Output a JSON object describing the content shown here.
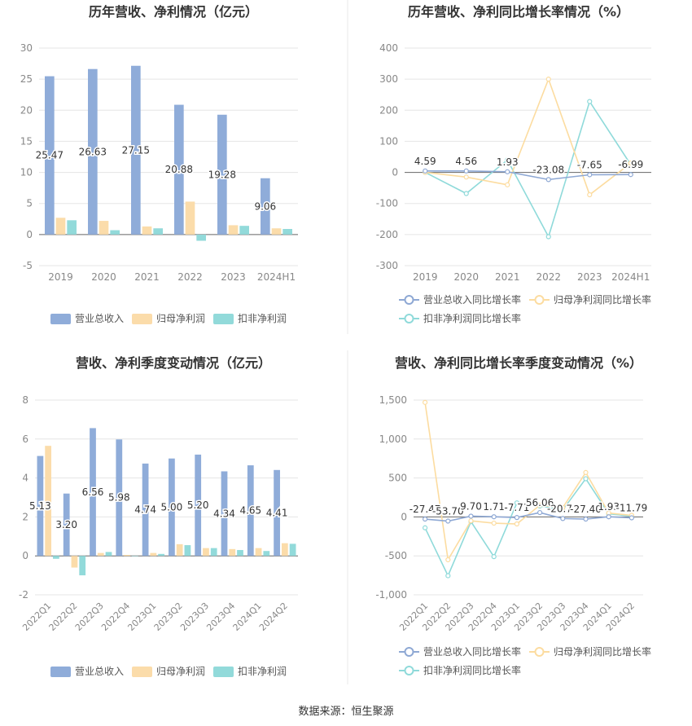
{
  "colors": {
    "revenue": "#8facd9",
    "net_profit": "#fbdcaa",
    "deducted_net_profit": "#92dada",
    "revenue_line": "#8ea8d4",
    "net_profit_line": "#fcdca0",
    "deducted_line": "#8fdada",
    "grid": "#e5e5e5",
    "axis_text": "#888888",
    "title_text": "#333333",
    "divider": "#e8e8e8"
  },
  "footer": {
    "source": "数据来源：恒生聚源"
  },
  "chart_data": [
    {
      "id": "annual-amounts",
      "type": "bar",
      "title": "历年营收、净利情况（亿元）",
      "categories": [
        "2019",
        "2020",
        "2021",
        "2022",
        "2023",
        "2024H1"
      ],
      "ylim": [
        -5,
        30
      ],
      "yticks": [
        -5,
        0,
        5,
        10,
        15,
        20,
        25,
        30
      ],
      "grid": true,
      "legend_position": "bottom",
      "series": [
        {
          "name": "营业总收入",
          "values": [
            25.47,
            26.63,
            27.15,
            20.88,
            19.28,
            9.06
          ],
          "labels": [
            "25.47",
            "26.63",
            "27.15",
            "20.88",
            "19.28",
            "9.06"
          ]
        },
        {
          "name": "归母净利润",
          "values": [
            2.7,
            2.2,
            1.3,
            5.3,
            1.5,
            1.0
          ]
        },
        {
          "name": "扣非净利润",
          "values": [
            2.3,
            0.7,
            1.0,
            -1.0,
            1.4,
            0.9
          ]
        }
      ]
    },
    {
      "id": "annual-growth",
      "type": "line",
      "title": "历年营收、净利同比增长率情况（%）",
      "categories": [
        "2019",
        "2020",
        "2021",
        "2022",
        "2023",
        "2024H1"
      ],
      "ylim": [
        -300,
        400
      ],
      "yticks": [
        -300,
        -200,
        -100,
        0,
        100,
        200,
        300,
        400
      ],
      "grid": true,
      "legend_position": "bottom",
      "series": [
        {
          "name": "营业总收入同比增长率",
          "values": [
            4.59,
            4.56,
            1.93,
            -23.08,
            -7.65,
            -6.99
          ],
          "labels": [
            "4.59",
            "4.56",
            "1.93",
            "-23.08",
            "-7.65",
            "-6.99"
          ]
        },
        {
          "name": "归母净利润同比增长率",
          "values": [
            0,
            -15,
            -40,
            300,
            -72,
            30
          ]
        },
        {
          "name": "扣非净利润同比增长率",
          "values": [
            0,
            -68,
            40,
            -207,
            228,
            25
          ]
        }
      ]
    },
    {
      "id": "quarterly-amounts",
      "type": "bar",
      "title": "营收、净利季度变动情况（亿元）",
      "categories": [
        "2022Q1",
        "2022Q2",
        "2022Q3",
        "2022Q4",
        "2023Q1",
        "2023Q2",
        "2023Q3",
        "2023Q4",
        "2024Q1",
        "2024Q2"
      ],
      "ylim": [
        -2,
        8
      ],
      "yticks": [
        -2,
        0,
        2,
        4,
        6,
        8
      ],
      "grid": true,
      "legend_position": "bottom",
      "series": [
        {
          "name": "营业总收入",
          "values": [
            5.13,
            3.2,
            6.56,
            5.98,
            4.74,
            5.0,
            5.2,
            4.34,
            4.65,
            4.41
          ],
          "labels": [
            "5.13",
            "3.20",
            "6.56",
            "5.98",
            "4.74",
            "5.00",
            "5.20",
            "4.34",
            "4.65",
            "4.41"
          ]
        },
        {
          "name": "归母净利润",
          "values": [
            5.65,
            -0.6,
            0.15,
            0.05,
            0.15,
            0.6,
            0.4,
            0.35,
            0.4,
            0.65
          ]
        },
        {
          "name": "扣非净利润",
          "values": [
            -0.15,
            -1.0,
            0.2,
            0.0,
            0.1,
            0.55,
            0.4,
            0.3,
            0.25,
            0.62
          ]
        }
      ]
    },
    {
      "id": "quarterly-growth",
      "type": "line",
      "title": "营收、净利同比增长率季度变动情况（%）",
      "categories": [
        "2022Q1",
        "2022Q2",
        "2022Q3",
        "2022Q4",
        "2023Q1",
        "2023Q2",
        "2023Q3",
        "2023Q4",
        "2024Q1",
        "2024Q2"
      ],
      "ylim": [
        -1000,
        1500
      ],
      "yticks": [
        -1000,
        -500,
        0,
        500,
        1000,
        1500
      ],
      "ytick_labels": [
        "-1,000",
        "-500",
        "0",
        "500",
        "1,000",
        "1,500"
      ],
      "grid": true,
      "legend_position": "bottom",
      "series": [
        {
          "name": "营业总收入同比增长率",
          "values": [
            -27.47,
            -53.7,
            9.7,
            1.71,
            -7.71,
            56.06,
            -20.72,
            -27.4,
            1.93,
            -11.79
          ],
          "labels": [
            "-27.47",
            "-53.70",
            "9.70",
            "1.71",
            "-7.71",
            "56.06",
            "-20.72",
            "-27.40",
            "1.93",
            "-11.79"
          ]
        },
        {
          "name": "归母净利润同比增长率",
          "values": [
            1470,
            -550,
            -50,
            -80,
            -90,
            150,
            120,
            570,
            50,
            20
          ]
        },
        {
          "name": "扣非净利润同比增长率",
          "values": [
            -140,
            -755,
            -60,
            -510,
            180,
            140,
            90,
            490,
            40,
            10
          ]
        }
      ]
    }
  ]
}
